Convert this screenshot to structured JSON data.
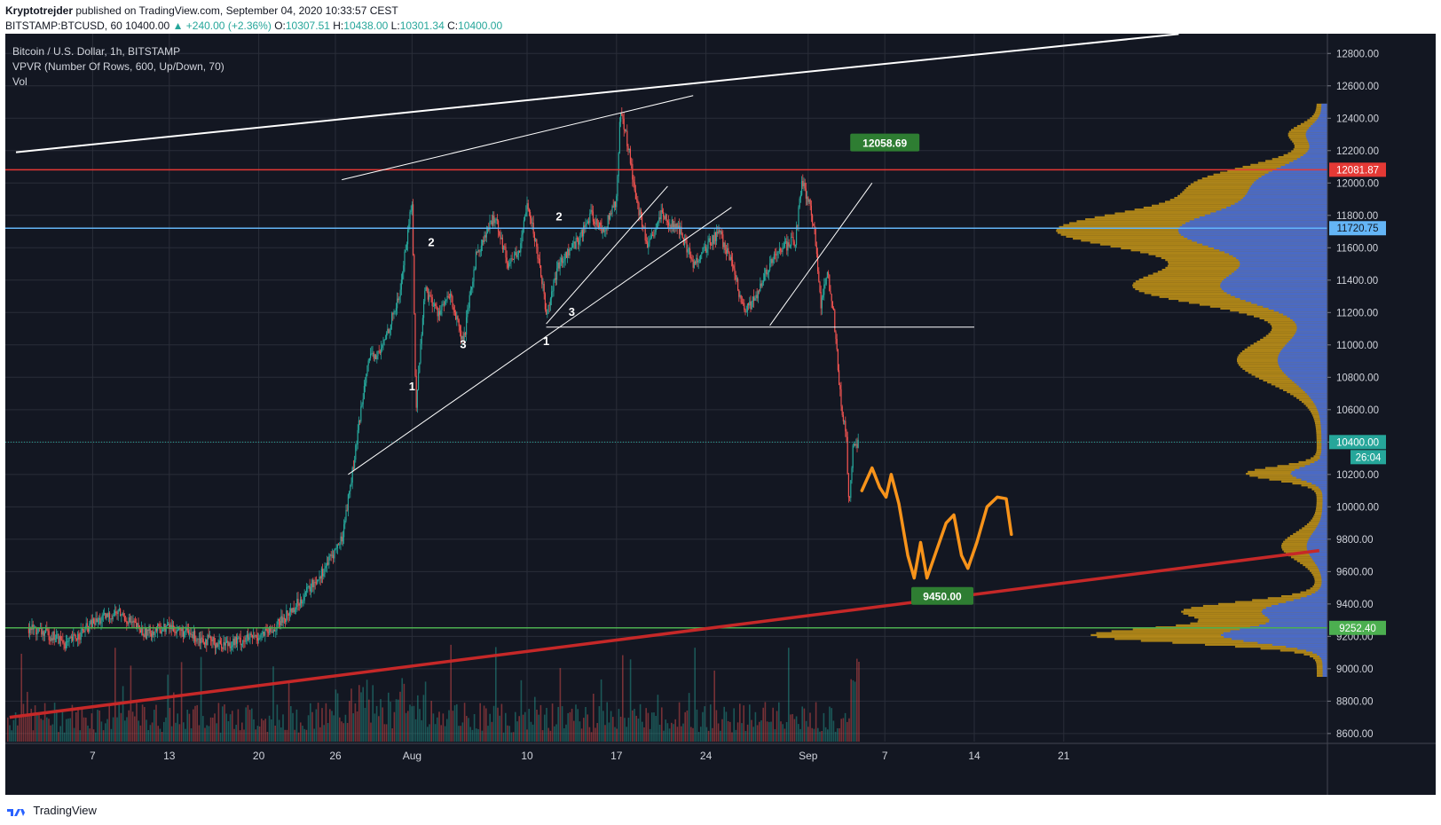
{
  "header": {
    "publisher": "Kryptotrejder",
    "published_text": "published on TradingView.com, September 04, 2020 10:33:57 CEST",
    "symbol_line": "BITSTAMP:BTCUSD, 60",
    "last": "10400.00",
    "change": "▲ +240.00 (+2.36%)",
    "o_label": "O:",
    "o": "10307.51",
    "h_label": "H:",
    "h": "10438.00",
    "l_label": "L:",
    "l": "10301.34",
    "c_label": "C:",
    "c": "10400.00"
  },
  "legend": {
    "title": "Bitcoin / U.S. Dollar, 1h, BITSTAMP",
    "vpvr": "VPVR (Number Of Rows, 600, Up/Down, 70)",
    "vol": "Vol"
  },
  "colors": {
    "background": "#131722",
    "grid": "#2a2e39",
    "candle_up": "#26a69a",
    "candle_down": "#ef5350",
    "resistance": "#e53935",
    "blue_level": "#64b5f6",
    "green_level": "#4caf50",
    "trend_red": "#c62828",
    "projection": "#f7931a",
    "vpvr_up": "#2962ff",
    "vpvr_down": "#d4a017"
  },
  "chart_data": {
    "type": "candlestick",
    "symbol": "BITSTAMP:BTCUSD",
    "interval": "1h",
    "ylim": [
      8550,
      12900
    ],
    "y_ticks": [
      8600,
      8800,
      9000,
      9200,
      9400,
      9600,
      9800,
      10000,
      10200,
      10400,
      10600,
      10800,
      11000,
      11200,
      11400,
      11600,
      11800,
      12000,
      12200,
      12400,
      12600,
      12800
    ],
    "y_tick_labels": [
      "8600.00",
      "8800.00",
      "9000.00",
      "9200.00",
      "9400.00",
      "9600.00",
      "9800.00",
      "10000.00",
      "10200.00",
      "10400.00",
      "10600.00",
      "10800.00",
      "11000.00",
      "11200.00",
      "11400.00",
      "11600.00",
      "11800.00",
      "12000.00",
      "12200.00",
      "12400.00",
      "12600.00",
      "12800.00"
    ],
    "x_ticks": [
      {
        "label": "7",
        "day": 7
      },
      {
        "label": "13",
        "day": 13
      },
      {
        "label": "20",
        "day": 20
      },
      {
        "label": "26",
        "day": 26
      },
      {
        "label": "Aug",
        "day": 32
      },
      {
        "label": "10",
        "day": 41
      },
      {
        "label": "17",
        "day": 48
      },
      {
        "label": "24",
        "day": 55
      },
      {
        "label": "Sep",
        "day": 63
      },
      {
        "label": "7",
        "day": 69
      },
      {
        "label": "14",
        "day": 76
      },
      {
        "label": "21",
        "day": 83
      }
    ],
    "price_path": [
      [
        2,
        9250
      ],
      [
        4,
        9200
      ],
      [
        5,
        9150
      ],
      [
        7,
        9280
      ],
      [
        9,
        9350
      ],
      [
        11,
        9220
      ],
      [
        13,
        9260
      ],
      [
        15,
        9200
      ],
      [
        17,
        9150
      ],
      [
        19,
        9180
      ],
      [
        21,
        9230
      ],
      [
        23,
        9400
      ],
      [
        25,
        9600
      ],
      [
        26.5,
        9800
      ],
      [
        27.5,
        10300
      ],
      [
        28.5,
        10900
      ],
      [
        29.5,
        10950
      ],
      [
        31,
        11300
      ],
      [
        32,
        11900
      ],
      [
        32.3,
        10600
      ],
      [
        33,
        11350
      ],
      [
        34,
        11200
      ],
      [
        35,
        11300
      ],
      [
        36,
        11000
      ],
      [
        37,
        11550
      ],
      [
        38.5,
        11800
      ],
      [
        39.5,
        11500
      ],
      [
        40.5,
        11600
      ],
      [
        41,
        11900
      ],
      [
        42,
        11500
      ],
      [
        42.5,
        11200
      ],
      [
        43.5,
        11500
      ],
      [
        45,
        11650
      ],
      [
        46,
        11800
      ],
      [
        47,
        11700
      ],
      [
        48,
        11900
      ],
      [
        48.3,
        12450
      ],
      [
        49,
        12200
      ],
      [
        49.5,
        11900
      ],
      [
        50.5,
        11600
      ],
      [
        51.5,
        11800
      ],
      [
        53,
        11700
      ],
      [
        54,
        11500
      ],
      [
        55,
        11600
      ],
      [
        56,
        11700
      ],
      [
        57,
        11500
      ],
      [
        57.5,
        11350
      ],
      [
        58,
        11200
      ],
      [
        59,
        11300
      ],
      [
        60,
        11500
      ],
      [
        61,
        11600
      ],
      [
        62,
        11650
      ],
      [
        62.5,
        12000
      ],
      [
        63,
        11900
      ],
      [
        63.5,
        11700
      ],
      [
        64,
        11250
      ],
      [
        64.5,
        11450
      ],
      [
        65,
        11200
      ],
      [
        65.5,
        10700
      ],
      [
        66,
        10400
      ],
      [
        66.2,
        10000
      ],
      [
        66.5,
        10350
      ],
      [
        67,
        10400
      ]
    ],
    "levels": [
      {
        "name": "resistance",
        "value": 12081.87,
        "label": "12081.87"
      },
      {
        "name": "blue",
        "value": 11720.75,
        "label": "11720.75"
      },
      {
        "name": "current",
        "value": 10400.0,
        "label": "10400.00",
        "countdown": "26:04"
      },
      {
        "name": "support",
        "value": 9252.4,
        "label": "9252.40"
      }
    ],
    "annotations": [
      {
        "text": "12058.69",
        "day": 69,
        "price": 12250
      },
      {
        "text": "9450.00",
        "day": 73.5,
        "price": 9450
      },
      {
        "text": "1",
        "day": 32,
        "price": 10720
      },
      {
        "text": "2",
        "day": 33.5,
        "price": 11610
      },
      {
        "text": "3",
        "day": 36,
        "price": 10980
      },
      {
        "text": "2",
        "day": 43.5,
        "price": 11770
      },
      {
        "text": "3",
        "day": 44.5,
        "price": 11180
      },
      {
        "text": "1",
        "day": 42.5,
        "price": 11000
      }
    ]
  },
  "footer": {
    "brand": "TradingView"
  }
}
